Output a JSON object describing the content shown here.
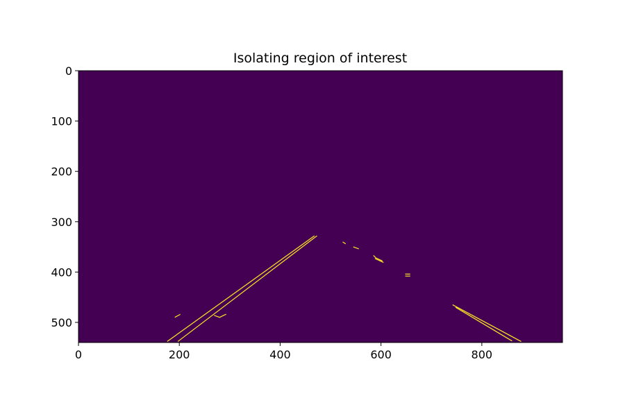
{
  "chart_data": {
    "type": "heatmap",
    "title": "Isolating region of interest",
    "xlabel": "",
    "ylabel": "",
    "xlim": [
      0,
      960
    ],
    "ylim": [
      540,
      0
    ],
    "x_ticks": [
      0,
      200,
      400,
      600,
      800
    ],
    "y_ticks": [
      0,
      100,
      200,
      300,
      400,
      500
    ],
    "background_color": "#440154",
    "edge_color": "#fde725",
    "grid": false,
    "legend": "none",
    "edge_segments": [
      {
        "name": "left-lane-outer",
        "points": [
          [
            176,
            538
          ],
          [
            468,
            328
          ]
        ]
      },
      {
        "name": "left-lane-inner",
        "points": [
          [
            197,
            538
          ],
          [
            473,
            328
          ]
        ]
      },
      {
        "name": "left-small-1",
        "points": [
          [
            191,
            490
          ],
          [
            202,
            484
          ]
        ]
      },
      {
        "name": "left-small-2",
        "points": [
          [
            269,
            486
          ],
          [
            280,
            490
          ],
          [
            290,
            485
          ],
          [
            293,
            484
          ]
        ]
      },
      {
        "name": "right-dash-1",
        "points": [
          [
            524,
            340
          ],
          [
            530,
            344
          ]
        ]
      },
      {
        "name": "right-dash-2",
        "points": [
          [
            545,
            350
          ],
          [
            556,
            354
          ]
        ]
      },
      {
        "name": "right-dash-3",
        "points": [
          [
            585,
            367
          ],
          [
            590,
            372
          ],
          [
            603,
            378
          ]
        ]
      },
      {
        "name": "right-dash-4",
        "points": [
          [
            588,
            373
          ],
          [
            605,
            381
          ]
        ]
      },
      {
        "name": "right-dash-5",
        "points": [
          [
            648,
            404
          ],
          [
            658,
            404
          ]
        ]
      },
      {
        "name": "right-dash-6",
        "points": [
          [
            648,
            408
          ],
          [
            658,
            408
          ]
        ]
      },
      {
        "name": "right-lane-outer",
        "points": [
          [
            742,
            465
          ],
          [
            878,
            538
          ]
        ]
      },
      {
        "name": "right-lane-inner",
        "points": [
          [
            748,
            470
          ],
          [
            860,
            537
          ]
        ]
      }
    ]
  }
}
